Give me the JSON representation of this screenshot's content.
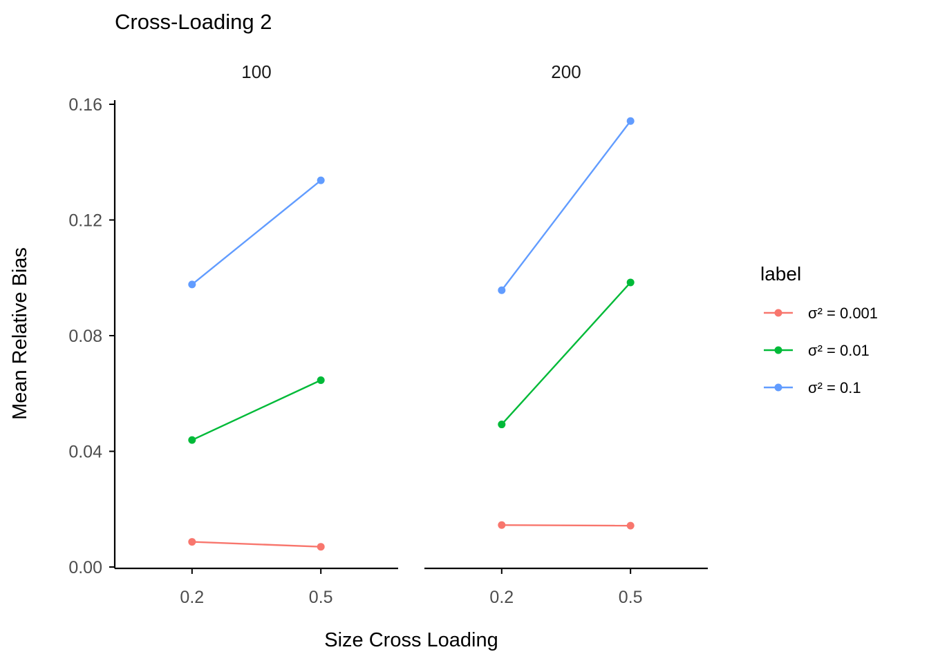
{
  "chart_data": {
    "type": "line",
    "title": "Cross-Loading 2",
    "xlabel": "Size Cross Loading",
    "ylabel": "Mean Relative Bias",
    "categories": [
      "0.2",
      "0.5"
    ],
    "yticks": [
      "0.00",
      "0.04",
      "0.08",
      "0.12",
      "0.16"
    ],
    "ylim": [
      0,
      0.16
    ],
    "grid": false,
    "legend_title": "label",
    "legend_position": "right",
    "facets": [
      {
        "label": "100",
        "series": [
          {
            "name": "σ² = 0.001",
            "color": "#F8766D",
            "values": [
              0.0087,
              0.007
            ]
          },
          {
            "name": "σ² = 0.01",
            "color": "#00BA38",
            "values": [
              0.0439,
              0.0646
            ]
          },
          {
            "name": "σ² = 0.1",
            "color": "#619CFF",
            "values": [
              0.0977,
              0.1337
            ]
          }
        ]
      },
      {
        "label": "200",
        "series": [
          {
            "name": "σ² = 0.001",
            "color": "#F8766D",
            "values": [
              0.0145,
              0.0143
            ]
          },
          {
            "name": "σ² = 0.01",
            "color": "#00BA38",
            "values": [
              0.0493,
              0.0984
            ]
          },
          {
            "name": "σ² = 0.1",
            "color": "#619CFF",
            "values": [
              0.0957,
              0.1542
            ]
          }
        ]
      }
    ]
  }
}
